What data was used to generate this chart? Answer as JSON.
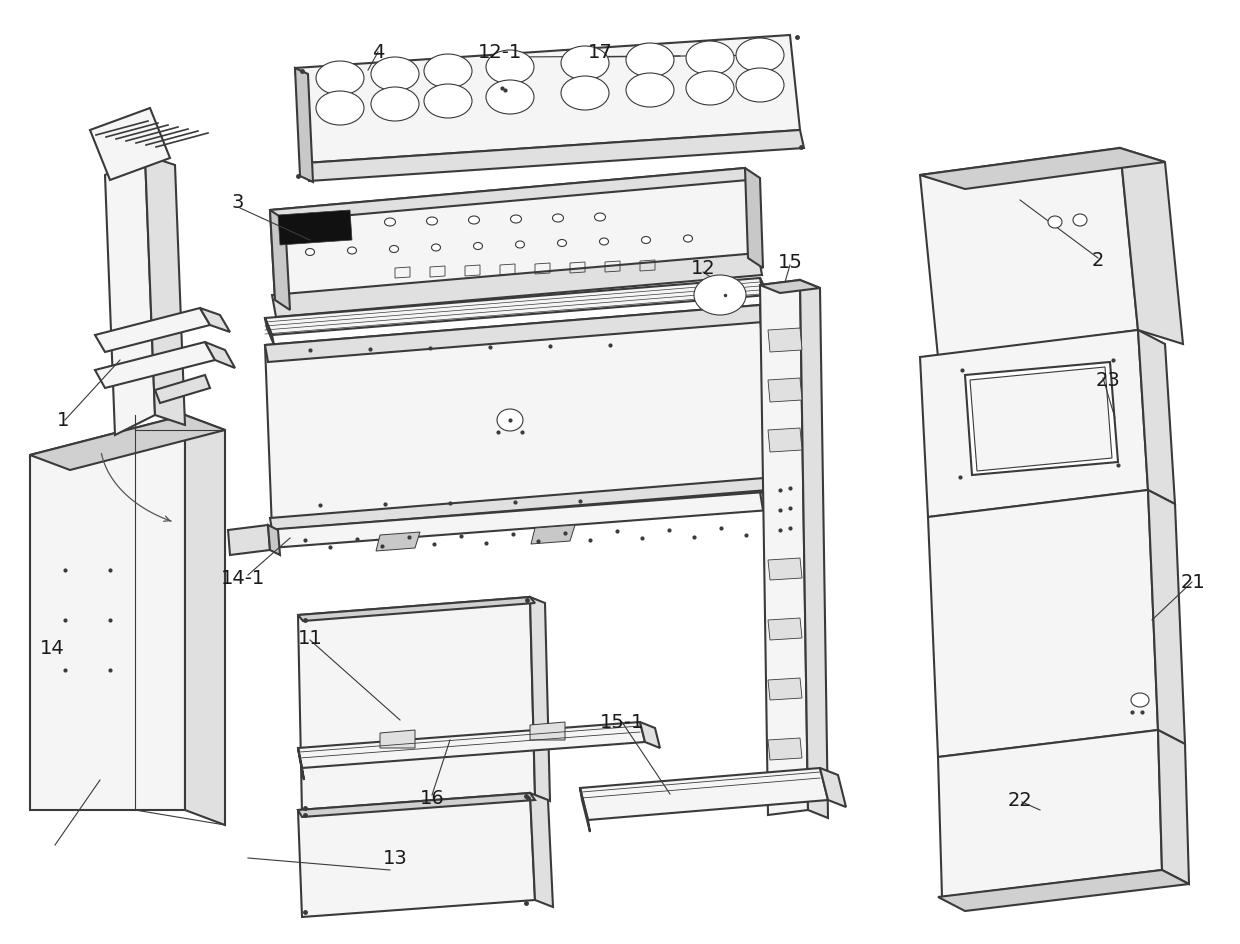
{
  "bg": "#ffffff",
  "lc": "#3a3a3a",
  "fc_main": "#f5f5f5",
  "fc_side": "#e0e0e0",
  "fc_top": "#d0d0d0",
  "fc_dark": "#c8c8c8",
  "lw_main": 1.5,
  "lw_thin": 0.8,
  "lw_leader": 0.8,
  "label_fs": 14,
  "label_color": "#1a1a1a"
}
